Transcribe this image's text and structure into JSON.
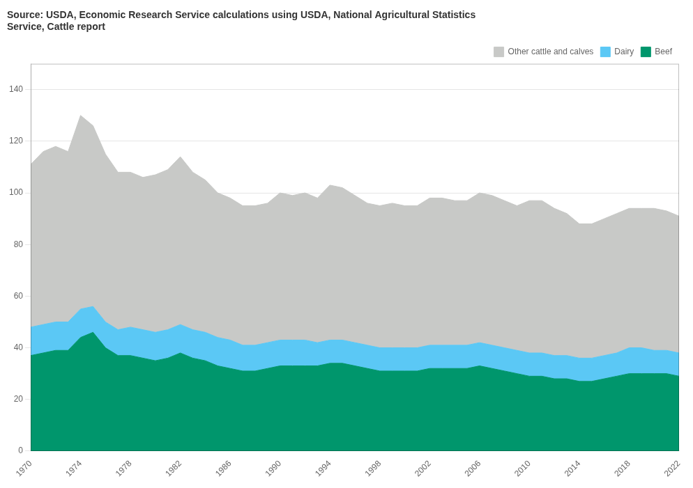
{
  "chart_data": {
    "type": "area",
    "title": "Source: USDA, Economic Research Service calculations using USDA, National Agricultural Statistics\nService, Cattle report",
    "x": [
      1970,
      1971,
      1972,
      1973,
      1974,
      1975,
      1976,
      1977,
      1978,
      1979,
      1980,
      1981,
      1982,
      1983,
      1984,
      1985,
      1986,
      1987,
      1988,
      1989,
      1990,
      1991,
      1992,
      1993,
      1994,
      1995,
      1996,
      1997,
      1998,
      1999,
      2000,
      2001,
      2002,
      2003,
      2004,
      2005,
      2006,
      2007,
      2008,
      2009,
      2010,
      2011,
      2012,
      2013,
      2014,
      2015,
      2016,
      2017,
      2018,
      2019,
      2020,
      2021,
      2022
    ],
    "series": [
      {
        "name": "Beef",
        "color": "#00966C",
        "values": [
          37,
          38,
          39,
          39,
          44,
          46,
          40,
          37,
          37,
          36,
          35,
          36,
          38,
          36,
          35,
          33,
          32,
          31,
          31,
          32,
          33,
          33,
          33,
          33,
          34,
          34,
          33,
          32,
          31,
          31,
          31,
          31,
          32,
          32,
          32,
          32,
          33,
          32,
          31,
          30,
          29,
          29,
          28,
          28,
          27,
          27,
          28,
          29,
          30,
          30,
          30,
          30,
          29
        ]
      },
      {
        "name": "Dairy",
        "color": "#5BC8F5",
        "values": [
          11,
          11,
          11,
          11,
          11,
          10,
          10,
          10,
          11,
          11,
          11,
          11,
          11,
          11,
          11,
          11,
          11,
          10,
          10,
          10,
          10,
          10,
          10,
          9,
          9,
          9,
          9,
          9,
          9,
          9,
          9,
          9,
          9,
          9,
          9,
          9,
          9,
          9,
          9,
          9,
          9,
          9,
          9,
          9,
          9,
          9,
          9,
          9,
          10,
          10,
          9,
          9,
          9
        ]
      },
      {
        "name": "Other cattle and calves",
        "color": "#C8C9C7",
        "values": [
          63,
          67,
          68,
          66,
          75,
          70,
          65,
          61,
          60,
          59,
          61,
          62,
          65,
          61,
          59,
          56,
          55,
          54,
          54,
          54,
          57,
          56,
          57,
          56,
          60,
          59,
          57,
          55,
          55,
          56,
          55,
          55,
          57,
          57,
          56,
          56,
          58,
          58,
          57,
          56,
          59,
          59,
          57,
          55,
          52,
          52,
          53,
          54,
          54,
          54,
          55,
          54,
          53
        ]
      }
    ],
    "xlim": [
      1970,
      2022
    ],
    "xticks": [
      1970,
      1974,
      1978,
      1982,
      1986,
      1990,
      1994,
      1998,
      2002,
      2006,
      2010,
      2014,
      2018,
      2022
    ],
    "ylim": [
      0,
      150
    ],
    "yticks": [
      0,
      20,
      40,
      60,
      80,
      100,
      120,
      140
    ],
    "stacked": true,
    "grid": "y",
    "legend": "upper right"
  }
}
